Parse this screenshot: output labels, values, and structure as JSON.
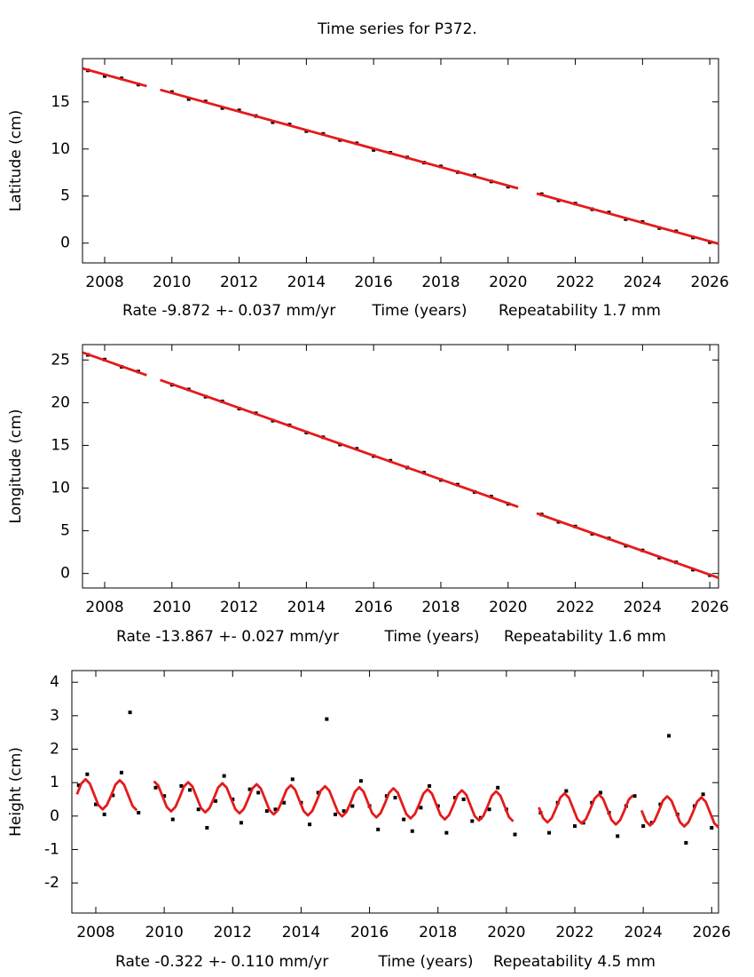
{
  "title": "Time series for P372.",
  "chart_data": [
    {
      "type": "scatter",
      "ylabel": "Latitude (cm)",
      "xlabel": "Time (years)",
      "rate": "Rate -9.872 +- 0.037 mm/yr",
      "repeatability": "Repeatability 1.7 mm",
      "xlim": [
        2007.34,
        2026.26
      ],
      "ylim": [
        -2.1,
        19.6
      ],
      "xticks": [
        2008,
        2010,
        2012,
        2014,
        2016,
        2018,
        2020,
        2022,
        2024,
        2026
      ],
      "yticks": [
        0,
        5,
        10,
        15
      ],
      "series": [
        {
          "mode": "markers",
          "color": "#000000",
          "x": [
            2007.5,
            2008,
            2008.5,
            2009,
            2010,
            2010.5,
            2011,
            2011.5,
            2012,
            2012.5,
            2013,
            2013.5,
            2014,
            2014.5,
            2015,
            2015.5,
            2016,
            2016.5,
            2017,
            2017.5,
            2018,
            2018.5,
            2019,
            2019.5,
            2020,
            2021,
            2021.5,
            2022,
            2022.5,
            2023,
            2023.5,
            2024,
            2024.5,
            2025,
            2025.5,
            2026
          ],
          "values": [
            18.35,
            17.75,
            17.5,
            16.85,
            16.05,
            15.3,
            15.05,
            14.35,
            14.1,
            13.5,
            12.85,
            12.6,
            11.9,
            11.6,
            10.95,
            10.6,
            9.9,
            9.6,
            9.1,
            8.55,
            8.15,
            7.55,
            7.2,
            6.55,
            6.0,
            5.2,
            4.55,
            4.2,
            3.6,
            3.25,
            2.55,
            2.25,
            1.6,
            1.25,
            0.6,
            0.1
          ]
        },
        {
          "mode": "lines",
          "color": "#e41a1c",
          "x": [
            2007.35,
            2009.25,
            2009.45,
            2009.65,
            2020.3,
            2020.6,
            2020.85,
            2026.26
          ],
          "values": [
            18.55,
            16.68,
            null,
            16.29,
            5.81,
            null,
            5.27,
            -0.06
          ]
        }
      ]
    },
    {
      "type": "scatter",
      "ylabel": "Longitude (cm)",
      "xlabel": "Time (years)",
      "rate": "Rate -13.867 +- 0.027 mm/yr",
      "repeatability": "Repeatability 1.6 mm",
      "xlim": [
        2007.34,
        2026.26
      ],
      "ylim": [
        -1.7,
        26.8
      ],
      "xticks": [
        2008,
        2010,
        2012,
        2014,
        2016,
        2018,
        2020,
        2022,
        2024,
        2026
      ],
      "yticks": [
        0,
        5,
        10,
        15,
        20,
        25
      ],
      "series": [
        {
          "mode": "markers",
          "color": "#000000",
          "x": [
            2007.5,
            2008,
            2008.5,
            2009,
            2010,
            2010.5,
            2011,
            2011.5,
            2012,
            2012.5,
            2013,
            2013.5,
            2014,
            2014.5,
            2015,
            2015.5,
            2016,
            2016.5,
            2017,
            2017.5,
            2018,
            2018.5,
            2019,
            2019.5,
            2020,
            2021,
            2021.5,
            2022,
            2022.5,
            2023,
            2023.5,
            2024,
            2024.5,
            2025,
            2025.5,
            2026
          ],
          "values": [
            25.6,
            25.05,
            24.2,
            23.65,
            22.1,
            21.55,
            20.7,
            20.15,
            19.3,
            18.75,
            17.9,
            17.35,
            16.5,
            15.95,
            15.1,
            14.6,
            13.75,
            13.2,
            12.4,
            11.8,
            10.95,
            10.4,
            9.55,
            9.0,
            8.15,
            6.9,
            6.05,
            5.5,
            4.65,
            4.1,
            3.25,
            2.7,
            1.85,
            1.3,
            0.45,
            -0.2
          ]
        },
        {
          "mode": "lines",
          "color": "#e41a1c",
          "x": [
            2007.35,
            2009.25,
            2009.45,
            2009.65,
            2020.3,
            2020.6,
            2020.85,
            2026.26
          ],
          "values": [
            25.87,
            23.22,
            null,
            22.66,
            7.8,
            null,
            7.04,
            -0.51
          ]
        }
      ]
    },
    {
      "type": "scatter",
      "ylabel": "Height (cm)",
      "xlabel": "Time (years)",
      "rate": "Rate -0.322 +- 0.110 mm/yr",
      "repeatability": "Repeatability 4.5 mm",
      "xlim": [
        2007.3,
        2026.2
      ],
      "ylim": [
        -2.9,
        4.35
      ],
      "xticks": [
        2008,
        2010,
        2012,
        2014,
        2016,
        2018,
        2020,
        2022,
        2024,
        2026
      ],
      "yticks": [
        -2,
        -1,
        0,
        1,
        2,
        3,
        4
      ],
      "series": [
        {
          "mode": "markers",
          "color": "#000000",
          "x": [
            2007.5,
            2007.75,
            2008,
            2008.25,
            2008.5,
            2008.75,
            2009,
            2009.25,
            2009.75,
            2010,
            2010.25,
            2010.5,
            2010.75,
            2011,
            2011.25,
            2011.5,
            2011.75,
            2012,
            2012.25,
            2012.5,
            2012.75,
            2013,
            2013.25,
            2013.5,
            2013.75,
            2014,
            2014.25,
            2014.5,
            2014.75,
            2015,
            2015.25,
            2015.5,
            2015.75,
            2016,
            2016.25,
            2016.5,
            2016.75,
            2017,
            2017.25,
            2017.5,
            2017.75,
            2018,
            2018.25,
            2018.5,
            2018.75,
            2019,
            2019.25,
            2019.5,
            2019.75,
            2020,
            2020.25,
            2021,
            2021.25,
            2021.5,
            2021.75,
            2022,
            2022.25,
            2022.5,
            2022.75,
            2023,
            2023.25,
            2023.5,
            2023.75,
            2024,
            2024.25,
            2024.5,
            2024.75,
            2025,
            2025.25,
            2025.5,
            2025.75,
            2026
          ],
          "values": [
            0.92,
            1.25,
            0.35,
            0.05,
            0.62,
            1.3,
            3.1,
            0.1,
            0.85,
            0.6,
            -0.1,
            0.9,
            0.78,
            0.2,
            -0.35,
            0.45,
            1.2,
            0.5,
            -0.2,
            0.8,
            0.7,
            0.15,
            0.2,
            0.4,
            1.1,
            0.4,
            -0.25,
            0.7,
            2.9,
            0.05,
            0.15,
            0.3,
            1.05,
            0.3,
            -0.4,
            0.6,
            0.55,
            -0.1,
            -0.45,
            0.25,
            0.9,
            0.3,
            -0.5,
            0.55,
            0.5,
            -0.15,
            -0.05,
            0.2,
            0.85,
            0.2,
            -0.55,
            0.1,
            -0.5,
            0.4,
            0.75,
            -0.3,
            -0.2,
            0.4,
            0.7,
            0.1,
            -0.6,
            0.3,
            0.6,
            -0.3,
            -0.2,
            0.35,
            2.4,
            0.05,
            -0.8,
            0.3,
            0.65,
            -0.35
          ]
        },
        {
          "mode": "lines",
          "color": "#e41a1c",
          "x": [
            2007.45,
            2007.575,
            2007.7,
            2007.825,
            2007.95,
            2008.075,
            2008.2,
            2008.325,
            2008.45,
            2008.575,
            2008.7,
            2008.825,
            2008.95,
            2009.075,
            2009.2,
            2009.325,
            2009.45,
            2009.575,
            2009.7,
            2009.825,
            2009.95,
            2010.075,
            2010.2,
            2010.325,
            2010.45,
            2010.575,
            2010.7,
            2010.825,
            2010.95,
            2011.075,
            2011.2,
            2011.325,
            2011.45,
            2011.575,
            2011.7,
            2011.825,
            2011.95,
            2012.075,
            2012.2,
            2012.325,
            2012.45,
            2012.575,
            2012.7,
            2012.825,
            2012.95,
            2013.075,
            2013.2,
            2013.325,
            2013.45,
            2013.575,
            2013.7,
            2013.825,
            2013.95,
            2014.075,
            2014.2,
            2014.325,
            2014.45,
            2014.575,
            2014.7,
            2014.825,
            2014.95,
            2015.075,
            2015.2,
            2015.325,
            2015.45,
            2015.575,
            2015.7,
            2015.825,
            2015.95,
            2016.075,
            2016.2,
            2016.325,
            2016.45,
            2016.575,
            2016.7,
            2016.825,
            2016.95,
            2017.075,
            2017.2,
            2017.325,
            2017.45,
            2017.575,
            2017.7,
            2017.825,
            2017.95,
            2018.075,
            2018.2,
            2018.325,
            2018.45,
            2018.575,
            2018.7,
            2018.825,
            2018.95,
            2019.075,
            2019.2,
            2019.325,
            2019.45,
            2019.575,
            2019.7,
            2019.825,
            2019.95,
            2020.075,
            2020.2,
            2020.325,
            2020.45,
            2020.575,
            2020.7,
            2020.825,
            2020.95,
            2021.075,
            2021.2,
            2021.325,
            2021.45,
            2021.575,
            2021.7,
            2021.825,
            2021.95,
            2022.075,
            2022.2,
            2022.325,
            2022.45,
            2022.575,
            2022.7,
            2022.825,
            2022.95,
            2023.075,
            2023.2,
            2023.325,
            2023.45,
            2023.575,
            2023.7,
            2023.825,
            2023.95,
            2024.075,
            2024.2,
            2024.325,
            2024.45,
            2024.575,
            2024.7,
            2024.825,
            2024.95,
            2025.075,
            2025.2,
            2025.325,
            2025.45,
            2025.575,
            2025.7,
            2025.825,
            2025.95,
            2026.075,
            2026.2
          ],
          "values": [
            0.65,
            0.97,
            1.1,
            0.97,
            0.65,
            0.33,
            0.2,
            0.33,
            0.62,
            0.94,
            1.07,
            0.94,
            0.62,
            0.3,
            0.17,
            null,
            null,
            null,
            1.04,
            0.91,
            0.59,
            0.27,
            0.14,
            0.27,
            0.56,
            0.88,
            1.01,
            0.88,
            0.56,
            0.24,
            0.11,
            0.24,
            0.53,
            0.85,
            0.98,
            0.85,
            0.53,
            0.21,
            0.08,
            0.21,
            0.5,
            0.82,
            0.95,
            0.82,
            0.5,
            0.18,
            0.05,
            0.18,
            0.47,
            0.79,
            0.92,
            0.79,
            0.47,
            0.15,
            0.02,
            0.15,
            0.44,
            0.76,
            0.89,
            0.76,
            0.44,
            0.12,
            -0.01,
            0.12,
            0.41,
            0.73,
            0.86,
            0.73,
            0.41,
            0.09,
            -0.04,
            0.09,
            0.38,
            0.7,
            0.83,
            0.7,
            0.38,
            0.06,
            -0.07,
            0.06,
            0.35,
            0.67,
            0.8,
            0.67,
            0.35,
            0.03,
            -0.1,
            0.03,
            0.32,
            0.64,
            0.77,
            0.64,
            0.32,
            0,
            -0.13,
            0,
            0.29,
            0.61,
            0.74,
            0.61,
            0.29,
            -0.03,
            -0.16,
            null,
            null,
            null,
            null,
            null,
            0.26,
            -0.06,
            -0.19,
            -0.06,
            0.23,
            0.55,
            0.68,
            0.55,
            0.23,
            -0.09,
            -0.22,
            -0.09,
            0.2,
            0.52,
            0.65,
            0.52,
            0.2,
            -0.12,
            -0.25,
            -0.12,
            0.17,
            0.49,
            0.62,
            null,
            0.17,
            -0.15,
            -0.28,
            -0.15,
            0.14,
            0.46,
            0.59,
            0.46,
            0.14,
            -0.18,
            -0.31,
            -0.18,
            0.11,
            0.43,
            0.56,
            0.43,
            0.11,
            -0.21,
            -0.34
          ]
        }
      ]
    }
  ]
}
